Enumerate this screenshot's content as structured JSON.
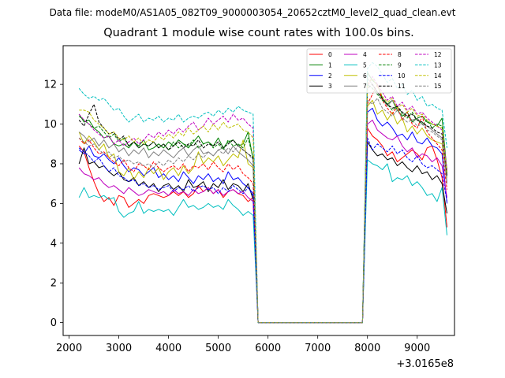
{
  "suptitle": "Data file: modeM0/AS1A05_082T09_9000003054_20652cztM0_level2_quad_clean.evt",
  "chart_data": {
    "type": "line",
    "title": "Quadrant 1 module wise count rates with 100.0s bins.",
    "xlabel": "",
    "ylabel": "",
    "x_offset_label": "+3.0165e8",
    "x_ticks": [
      2000,
      3000,
      4000,
      5000,
      6000,
      7000,
      8000,
      9000
    ],
    "y_ticks": [
      0,
      2,
      4,
      6,
      8,
      10,
      12
    ],
    "xlim": [
      1880,
      9750
    ],
    "ylim": [
      -0.65,
      13.95
    ],
    "legend_position": "top-right",
    "gap": {
      "start": 5800,
      "end": 7900
    },
    "series": [
      {
        "name": "0",
        "color": "#ff0000",
        "dash": "solid",
        "seg1": [
          8.9,
          8.6,
          7.8,
          7.1,
          6.5,
          6.1,
          6.3,
          5.9,
          6.4,
          6.3,
          5.8,
          6.0,
          6.2,
          6.0,
          6.4,
          6.5,
          6.4,
          6.3,
          6.4,
          6.6,
          6.4,
          6.6,
          6.3,
          6.5,
          6.9,
          6.6,
          6.8,
          6.5,
          6.7,
          6.3,
          6.6,
          6.7,
          6.5,
          6.4,
          6.1,
          6.3
        ],
        "seg2": [
          9.8,
          9.4,
          9.2,
          8.9,
          8.4,
          8.6,
          8.1,
          8.3,
          8.5,
          8.7,
          8.5,
          8.2,
          8.8,
          8.9,
          8.2,
          7.3,
          4.8
        ]
      },
      {
        "name": "1",
        "color": "#008000",
        "dash": "solid",
        "seg1": [
          10.5,
          10.1,
          10.2,
          9.8,
          9.6,
          9.3,
          9.4,
          9.0,
          8.9,
          9.0,
          8.8,
          9.1,
          8.9,
          9.2,
          8.7,
          8.8,
          9.0,
          8.8,
          9.1,
          8.9,
          9.2,
          9.0,
          8.8,
          9.1,
          9.4,
          9.0,
          9.1,
          8.9,
          9.3,
          8.8,
          9.1,
          9.2,
          8.9,
          9.0,
          9.6,
          8.2
        ],
        "seg2": [
          12.6,
          12.2,
          12.0,
          11.3,
          11.0,
          11.2,
          10.7,
          10.4,
          10.6,
          10.1,
          10.3,
          10.4,
          10.1,
          10.0,
          9.9,
          10.3,
          7.6
        ]
      },
      {
        "name": "2",
        "color": "#0000ff",
        "dash": "solid",
        "seg1": [
          8.7,
          8.5,
          8.9,
          8.4,
          8.3,
          8.5,
          8.2,
          8.0,
          8.3,
          7.9,
          7.6,
          7.8,
          7.7,
          7.4,
          7.6,
          7.8,
          7.3,
          7.5,
          7.2,
          7.4,
          7.1,
          7.6,
          7.3,
          7.0,
          7.4,
          7.2,
          7.5,
          7.1,
          7.3,
          7.0,
          7.6,
          7.2,
          7.3,
          7.0,
          6.8,
          6.5
        ],
        "seg2": [
          10.6,
          10.8,
          10.2,
          9.9,
          10.1,
          9.8,
          9.4,
          9.5,
          9.2,
          9.6,
          9.1,
          9.0,
          9.3,
          8.9,
          8.8,
          8.5,
          6.0
        ]
      },
      {
        "name": "3",
        "color": "#000000",
        "dash": "solid",
        "seg1": [
          8.0,
          8.8,
          8.0,
          8.1,
          7.8,
          7.9,
          7.6,
          7.4,
          7.6,
          7.2,
          7.1,
          7.3,
          6.9,
          7.1,
          6.8,
          7.0,
          6.6,
          6.9,
          7.0,
          6.7,
          6.9,
          6.6,
          7.2,
          6.8,
          6.9,
          7.1,
          6.6,
          7.0,
          6.8,
          7.2,
          6.7,
          7.0,
          6.9,
          6.6,
          7.0,
          6.2
        ],
        "seg2": [
          9.1,
          8.7,
          8.4,
          8.5,
          8.2,
          8.3,
          7.9,
          8.1,
          7.8,
          7.6,
          7.9,
          7.5,
          7.6,
          7.2,
          7.4,
          7.0,
          5.5
        ]
      },
      {
        "name": "4",
        "color": "#bf00bf",
        "dash": "solid",
        "seg1": [
          7.8,
          7.5,
          7.4,
          7.2,
          7.3,
          7.0,
          6.8,
          6.9,
          6.7,
          6.5,
          6.8,
          6.6,
          6.4,
          6.5,
          6.7,
          6.6,
          6.5,
          6.6,
          6.4,
          6.7,
          6.5,
          6.6,
          6.4,
          6.7,
          6.5,
          6.6,
          6.8,
          6.5,
          6.7,
          6.4,
          6.6,
          6.7,
          6.5,
          6.6,
          6.3,
          6.1
        ],
        "seg2": [
          10.0,
          10.2,
          9.7,
          9.5,
          9.3,
          9.2,
          9.4,
          8.9,
          8.6,
          8.8,
          8.3,
          8.5,
          8.4,
          8.1,
          8.3,
          7.9,
          6.3
        ]
      },
      {
        "name": "5",
        "color": "#00bfbf",
        "dash": "solid",
        "seg1": [
          6.3,
          6.8,
          6.3,
          6.4,
          6.3,
          6.4,
          6.2,
          6.3,
          5.6,
          5.3,
          5.5,
          5.6,
          6.1,
          5.5,
          5.7,
          5.6,
          5.7,
          5.6,
          5.7,
          5.4,
          5.8,
          6.2,
          5.8,
          5.9,
          5.7,
          5.8,
          6.0,
          5.8,
          5.9,
          5.7,
          6.2,
          5.9,
          5.7,
          5.4,
          5.6,
          5.4
        ],
        "seg2": [
          8.2,
          8.0,
          7.9,
          7.7,
          8.0,
          7.1,
          7.3,
          7.2,
          7.4,
          6.9,
          7.1,
          6.8,
          6.4,
          6.5,
          6.1,
          6.8,
          4.4
        ]
      },
      {
        "name": "6",
        "color": "#bfbf00",
        "dash": "solid",
        "seg1": [
          9.6,
          9.0,
          9.4,
          9.1,
          8.7,
          9.0,
          8.3,
          8.5,
          7.6,
          7.4,
          7.8,
          7.2,
          7.6,
          7.3,
          7.8,
          7.5,
          7.8,
          7.2,
          7.6,
          7.8,
          7.4,
          7.9,
          7.5,
          7.8,
          8.6,
          8.0,
          8.3,
          8.1,
          8.4,
          7.9,
          8.2,
          8.5,
          8.3,
          9.2,
          8.0,
          7.8
        ],
        "seg2": [
          10.9,
          11.2,
          10.5,
          10.7,
          10.2,
          10.6,
          10.0,
          10.3,
          9.6,
          9.9,
          9.5,
          9.8,
          9.4,
          9.2,
          9.1,
          9.0,
          7.3
        ]
      },
      {
        "name": "7",
        "color": "#808080",
        "dash": "solid",
        "seg1": [
          9.6,
          9.4,
          9.1,
          9.3,
          8.9,
          9.2,
          8.8,
          9.0,
          8.6,
          8.8,
          8.4,
          8.7,
          8.5,
          8.8,
          8.3,
          8.6,
          8.4,
          8.7,
          8.5,
          8.3,
          8.6,
          8.8,
          8.4,
          8.7,
          8.9,
          8.5,
          8.6,
          8.4,
          8.7,
          8.8,
          8.5,
          8.9,
          8.6,
          8.4,
          8.2,
          7.9
        ],
        "seg2": [
          12.3,
          12.0,
          11.6,
          11.3,
          10.9,
          11.2,
          10.8,
          10.6,
          10.4,
          10.2,
          10.3,
          10.0,
          9.9,
          9.7,
          9.5,
          9.3,
          7.1
        ]
      },
      {
        "name": "8",
        "color": "#ff0000",
        "dash": "dashed",
        "seg1": [
          9.3,
          9.0,
          9.2,
          8.8,
          8.5,
          8.6,
          8.3,
          8.1,
          7.9,
          8.2,
          7.8,
          7.6,
          8.0,
          7.9,
          7.7,
          8.1,
          7.8,
          7.6,
          7.8,
          7.9,
          7.7,
          8.0,
          7.6,
          7.9,
          7.8,
          8.0,
          7.7,
          8.1,
          7.8,
          7.6,
          8.0,
          7.7,
          7.9,
          7.5,
          7.3,
          7.0
        ],
        "seg2": [
          11.0,
          11.5,
          12.0,
          11.2,
          10.8,
          10.5,
          10.9,
          10.2,
          10.6,
          10.0,
          9.8,
          10.4,
          9.6,
          9.3,
          9.0,
          8.7,
          6.7
        ]
      },
      {
        "name": "9",
        "color": "#008000",
        "dash": "dashed",
        "seg1": [
          10.4,
          10.2,
          10.0,
          9.8,
          9.9,
          9.6,
          9.3,
          9.5,
          9.1,
          9.3,
          8.9,
          9.1,
          8.8,
          9.0,
          8.9,
          9.1,
          8.8,
          9.0,
          8.7,
          9.1,
          8.8,
          9.0,
          8.9,
          9.2,
          8.8,
          9.0,
          9.1,
          8.8,
          9.0,
          8.7,
          9.2,
          8.9,
          9.0,
          8.8,
          9.3,
          8.3
        ],
        "seg2": [
          12.0,
          11.8,
          11.5,
          11.2,
          11.0,
          10.7,
          10.9,
          10.5,
          10.3,
          10.6,
          10.2,
          10.0,
          10.2,
          9.8,
          10.0,
          9.9,
          7.5
        ]
      },
      {
        "name": "10",
        "color": "#0000ff",
        "dash": "dashed",
        "seg1": [
          8.8,
          8.6,
          8.4,
          8.1,
          8.3,
          7.9,
          7.6,
          7.8,
          7.4,
          7.3,
          7.1,
          7.2,
          6.9,
          7.0,
          6.8,
          6.9,
          6.7,
          6.8,
          6.9,
          6.6,
          6.8,
          6.7,
          6.9,
          6.6,
          6.8,
          6.9,
          6.7,
          6.8,
          6.5,
          6.8,
          6.6,
          6.9,
          6.7,
          6.5,
          6.8,
          6.4
        ],
        "seg2": [
          9.3,
          8.7,
          9.0,
          8.8,
          8.6,
          8.9,
          8.5,
          8.7,
          8.3,
          8.1,
          8.4,
          8.0,
          7.8,
          7.9,
          7.7,
          7.5,
          6.1
        ]
      },
      {
        "name": "11",
        "color": "#000000",
        "dash": "dashed",
        "seg1": [
          10.2,
          9.9,
          10.5,
          11.0,
          10.1,
          9.8,
          9.5,
          9.6,
          9.2,
          9.4,
          8.9,
          9.1,
          8.8,
          9.0,
          8.9,
          9.1,
          8.8,
          9.0,
          8.7,
          8.9,
          9.1,
          8.8,
          9.0,
          8.9,
          9.2,
          8.8,
          9.0,
          8.9,
          9.1,
          8.8,
          9.0,
          9.2,
          8.9,
          8.7,
          8.5,
          8.3
        ],
        "seg2": [
          11.8,
          12.0,
          11.6,
          11.3,
          11.0,
          10.8,
          10.9,
          10.6,
          10.4,
          10.5,
          10.2,
          10.1,
          9.9,
          9.8,
          9.6,
          9.5,
          7.4
        ]
      },
      {
        "name": "12",
        "color": "#bf00bf",
        "dash": "dashed",
        "seg1": [
          10.5,
          10.2,
          10.0,
          9.7,
          9.5,
          9.3,
          9.4,
          9.0,
          9.2,
          8.9,
          9.1,
          9.3,
          9.0,
          9.2,
          9.5,
          9.3,
          9.6,
          9.4,
          9.7,
          9.5,
          9.8,
          9.6,
          9.9,
          10.1,
          9.7,
          9.9,
          10.3,
          10.0,
          10.2,
          10.4,
          10.1,
          10.5,
          10.2,
          10.3,
          10.0,
          9.8
        ],
        "seg2": [
          11.9,
          12.4,
          12.0,
          11.6,
          11.2,
          11.4,
          10.9,
          11.1,
          10.7,
          10.9,
          10.5,
          10.6,
          10.3,
          10.1,
          9.9,
          9.7,
          7.7
        ]
      },
      {
        "name": "13",
        "color": "#00bfbf",
        "dash": "dashed",
        "seg1": [
          11.8,
          11.5,
          11.3,
          11.4,
          11.2,
          11.3,
          11.0,
          10.7,
          10.8,
          10.4,
          10.1,
          10.3,
          10.5,
          10.1,
          10.3,
          10.2,
          10.4,
          10.1,
          10.3,
          10.2,
          10.5,
          10.1,
          10.3,
          10.4,
          10.3,
          10.5,
          10.6,
          10.4,
          10.7,
          10.5,
          10.8,
          10.6,
          10.9,
          10.7,
          10.6,
          10.5
        ],
        "seg2": [
          12.8,
          13.1,
          12.9,
          12.5,
          12.1,
          12.3,
          11.8,
          12.0,
          11.5,
          11.7,
          11.2,
          11.4,
          10.9,
          11.0,
          10.8,
          10.7,
          8.8
        ]
      },
      {
        "name": "14",
        "color": "#bfbf00",
        "dash": "dashed",
        "seg1": [
          10.7,
          10.7,
          10.6,
          10.2,
          10.0,
          9.8,
          9.5,
          9.6,
          9.3,
          9.2,
          9.4,
          9.1,
          9.3,
          9.0,
          9.2,
          9.1,
          9.4,
          9.2,
          9.5,
          9.3,
          9.6,
          9.4,
          9.8,
          9.5,
          9.7,
          9.9,
          9.6,
          10.0,
          9.7,
          10.1,
          9.8,
          9.9,
          10.0,
          9.7,
          9.6,
          9.3
        ],
        "seg2": [
          12.0,
          12.3,
          11.9,
          11.4,
          11.1,
          11.3,
          10.8,
          11.0,
          10.6,
          10.8,
          10.4,
          10.5,
          10.2,
          10.0,
          9.9,
          9.8,
          7.5
        ]
      },
      {
        "name": "15",
        "color": "#808080",
        "dash": "dashed",
        "seg1": [
          9.3,
          9.1,
          8.9,
          9.0,
          8.7,
          8.5,
          8.6,
          8.3,
          8.4,
          8.1,
          8.2,
          8.0,
          8.1,
          7.9,
          8.0,
          7.8,
          8.1,
          7.9,
          8.2,
          8.0,
          8.3,
          8.1,
          8.4,
          8.2,
          8.5,
          8.3,
          8.6,
          8.4,
          8.7,
          8.5,
          8.8,
          8.6,
          8.9,
          8.7,
          8.5,
          8.2
        ],
        "seg2": [
          11.2,
          11.0,
          11.3,
          10.8,
          10.6,
          10.4,
          10.7,
          10.3,
          10.1,
          10.2,
          9.9,
          10.0,
          9.7,
          9.6,
          9.4,
          9.2,
          7.0
        ]
      }
    ]
  }
}
